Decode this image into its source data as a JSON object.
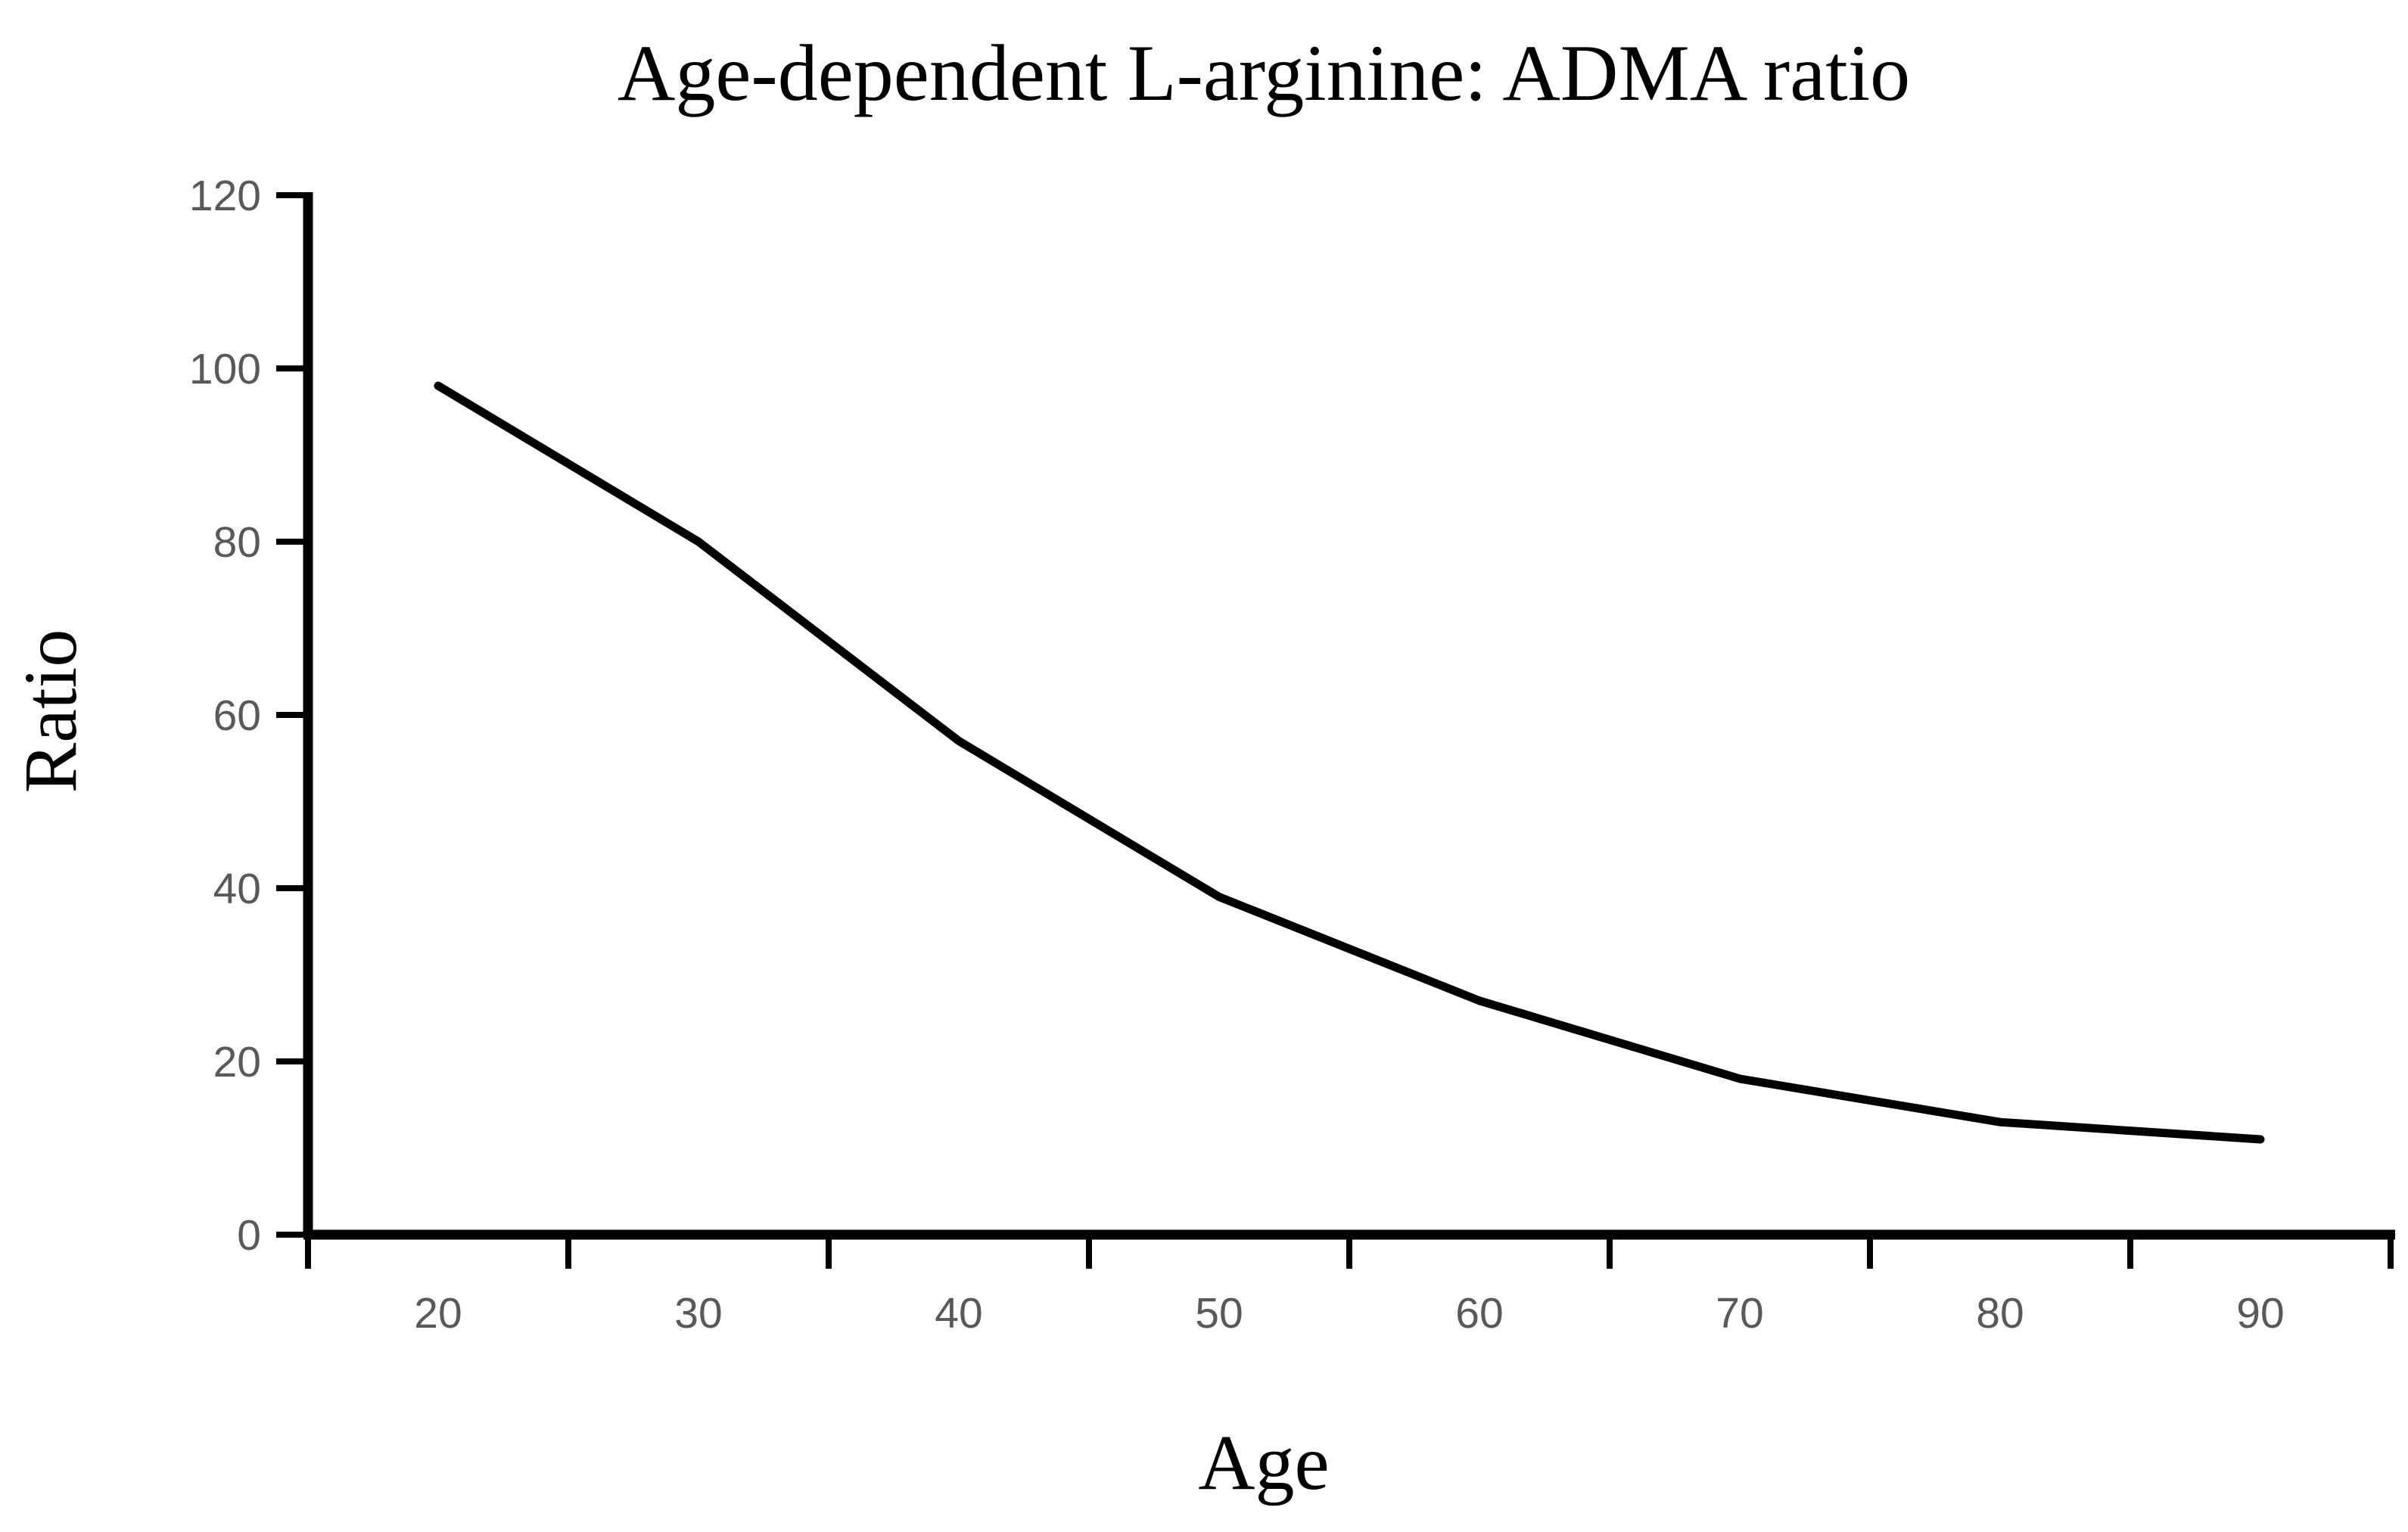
{
  "chart_data": {
    "type": "line",
    "title": "Age-dependent L-arginine: ADMA ratio",
    "xlabel": "Age",
    "ylabel": "Ratio",
    "x": [
      20,
      30,
      40,
      50,
      60,
      70,
      80,
      90
    ],
    "series": [
      {
        "name": "L-arginine:ADMA ratio",
        "values": [
          98,
          80,
          57,
          39,
          27,
          18,
          13,
          11
        ]
      }
    ],
    "ylim": [
      0,
      120
    ],
    "yticks": [
      0,
      20,
      40,
      60,
      80,
      100,
      120
    ],
    "xtick_labels": [
      "20",
      "30",
      "40",
      "50",
      "60",
      "70",
      "80",
      "90"
    ],
    "x_axis_style": "category-labels-between-boundary-ticks",
    "grid": false,
    "legend": "none",
    "colors": {
      "line": "#000000",
      "axis": "#000000",
      "tick_label": "#595959",
      "title_text": "#000000",
      "background": "#ffffff"
    }
  }
}
